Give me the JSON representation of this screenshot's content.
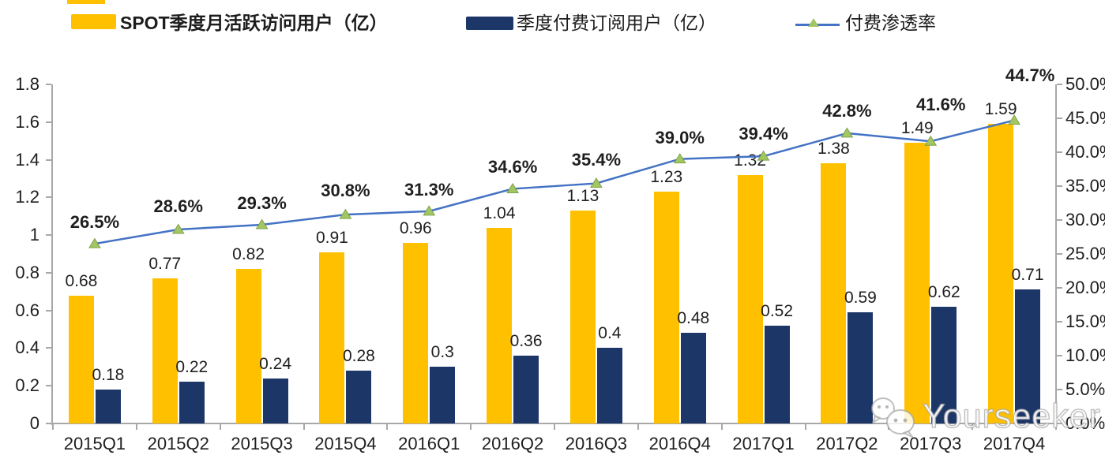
{
  "watermark": {
    "text": "Yourseeker",
    "icon": "wechat-icon"
  },
  "chart_data": {
    "type": "bar+line combo",
    "title": "",
    "categories": [
      "2015Q1",
      "2015Q2",
      "2015Q3",
      "2015Q4",
      "2016Q1",
      "2016Q2",
      "2016Q3",
      "2016Q4",
      "2017Q1",
      "2017Q2",
      "2017Q3",
      "2017Q4"
    ],
    "series": [
      {
        "name": "SPOT季度月活跃访问用户（亿）",
        "type": "bar",
        "axis": "left",
        "color": "#FFC000",
        "values": [
          0.68,
          0.77,
          0.82,
          0.91,
          0.96,
          1.04,
          1.13,
          1.23,
          1.32,
          1.38,
          1.49,
          1.59
        ],
        "labels": [
          "0.68",
          "0.77",
          "0.82",
          "0.91",
          "0.96",
          "1.04",
          "1.13",
          "1.23",
          "1.32",
          "1.38",
          "1.49",
          "1.59"
        ]
      },
      {
        "name": "季度付费订阅用户（亿）",
        "type": "bar",
        "axis": "left",
        "color": "#1C3667",
        "values": [
          0.18,
          0.22,
          0.24,
          0.28,
          0.3,
          0.36,
          0.4,
          0.48,
          0.52,
          0.59,
          0.62,
          0.71
        ],
        "labels": [
          "0.18",
          "0.22",
          "0.24",
          "0.28",
          "0.3",
          "0.36",
          "0.4",
          "0.48",
          "0.52",
          "0.59",
          "0.62",
          "0.71"
        ]
      },
      {
        "name": "付费渗透率",
        "type": "line",
        "axis": "right",
        "color": "#4472C4",
        "marker": "triangle",
        "marker_color": "#A2C662",
        "marker_edge_color": "#7fa24b",
        "values_pct": [
          26.5,
          28.6,
          29.3,
          30.8,
          31.3,
          34.6,
          35.4,
          39.0,
          39.4,
          42.8,
          41.6,
          44.7
        ],
        "labels": [
          "26.5%",
          "28.6%",
          "29.3%",
          "30.8%",
          "31.3%",
          "34.6%",
          "35.4%",
          "39.0%",
          "39.4%",
          "42.8%",
          "41.6%",
          "44.7%"
        ]
      }
    ],
    "left_axis": {
      "min": 0,
      "max": 1.8,
      "ticks": [
        "0",
        "0.2",
        "0.4",
        "0.6",
        "0.8",
        "1",
        "1.2",
        "1.4",
        "1.6",
        "1.8"
      ]
    },
    "right_axis": {
      "min": 0,
      "max": 50,
      "ticks": [
        "0.0%",
        "5.0%",
        "10.0%",
        "15.0%",
        "20.0%",
        "25.0%",
        "30.0%",
        "35.0%",
        "40.0%",
        "45.0%",
        "50.0%"
      ]
    },
    "grid": false,
    "legend_position": "top",
    "annotation_offsets": {
      "pct_dx": [
        0,
        0,
        0,
        0,
        0,
        0,
        0,
        0,
        0,
        0,
        13,
        20
      ],
      "pct_dy": [
        -27,
        -29,
        -27,
        -30,
        -27,
        -27,
        -30,
        -27,
        -28,
        -28,
        -46,
        -57
      ]
    }
  }
}
